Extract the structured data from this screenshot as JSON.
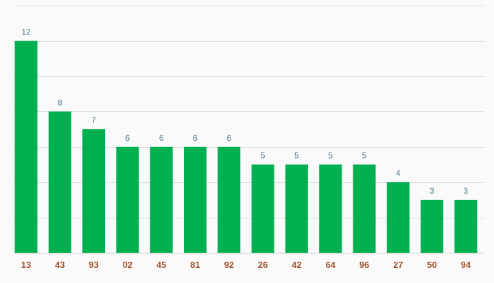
{
  "chart_data": {
    "type": "bar",
    "title": "",
    "xlabel": "",
    "ylabel": "",
    "categories": [
      "13",
      "43",
      "93",
      "02",
      "45",
      "81",
      "92",
      "26",
      "42",
      "64",
      "96",
      "27",
      "50",
      "94"
    ],
    "values": [
      12,
      8,
      7,
      6,
      6,
      6,
      6,
      5,
      5,
      5,
      5,
      4,
      3,
      3
    ],
    "ylim": [
      0,
      14
    ],
    "grid": true,
    "gridlines": [
      2,
      4,
      6,
      8,
      10,
      12,
      14
    ],
    "show_value_labels": true,
    "show_y_tick_labels": false,
    "legend": "none",
    "colors": {
      "bar": "#00b050",
      "value_label": "#4f7a8c",
      "category_label": "#a0522d",
      "grid": "#dcdcdc",
      "background": "#fafafa"
    }
  }
}
